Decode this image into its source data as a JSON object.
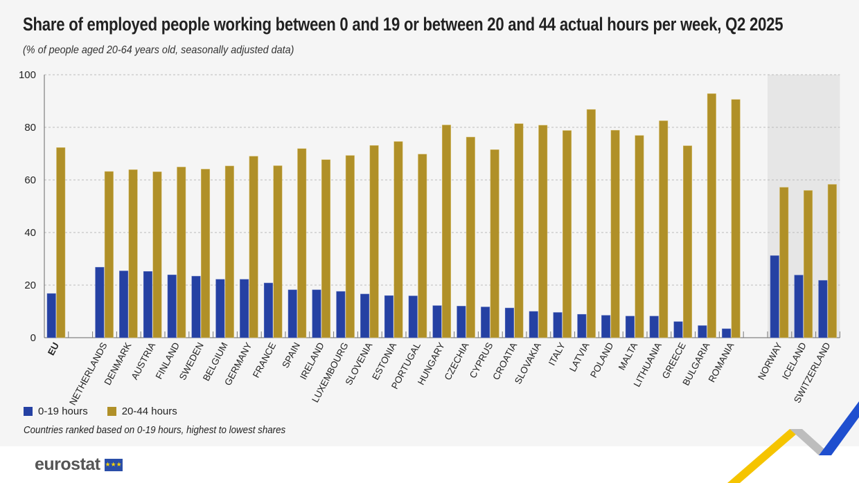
{
  "title": "Share of employed people working between 0 and 19 or between 20 and 44 actual hours per week, Q2 2025",
  "subtitle": "(% of people aged 20-64 years old, seasonally adjusted data)",
  "note": "Countries ranked based on 0-19 hours,  highest to lowest shares",
  "logo": "eurostat",
  "colors": {
    "series1": "#2541a3",
    "series2": "#b09028",
    "highlight_bg": "#e6e6e6"
  },
  "chart_data": {
    "type": "bar",
    "title": "Share of employed people working between 0 and 19 or between 20 and 44 actual hours per week, Q2 2025",
    "ylim": [
      0,
      100
    ],
    "yticks": [
      "0",
      "20",
      "40",
      "60",
      "80",
      "100"
    ],
    "grid": true,
    "legend_position": "bottom-left",
    "groups": [
      [
        "EU"
      ],
      [
        "NETHERLANDS",
        "DENMARK",
        "AUSTRIA",
        "FINLAND",
        "SWEDEN",
        "BELGIUM",
        "GERMANY",
        "FRANCE",
        "SPAIN",
        "IRELAND",
        "LUXEMBOURG",
        "SLOVENIA",
        "ESTONIA",
        "PORTUGAL",
        "HUNGARY",
        "CZECHIA",
        "CYPRUS",
        "CROATIA",
        "SLOVAKIA",
        "ITALY",
        "LATVIA",
        "POLAND",
        "MALTA",
        "LITHUANIA",
        "GREECE",
        "BULGARIA",
        "ROMANIA"
      ],
      [
        "NORWAY",
        "ICELAND",
        "SWITZERLAND"
      ]
    ],
    "categories": [
      "EU",
      "NETHERLANDS",
      "DENMARK",
      "AUSTRIA",
      "FINLAND",
      "SWEDEN",
      "BELGIUM",
      "GERMANY",
      "FRANCE",
      "SPAIN",
      "IRELAND",
      "LUXEMBOURG",
      "SLOVENIA",
      "ESTONIA",
      "PORTUGAL",
      "HUNGARY",
      "CZECHIA",
      "CYPRUS",
      "CROATIA",
      "SLOVAKIA",
      "ITALY",
      "LATVIA",
      "POLAND",
      "MALTA",
      "LITHUANIA",
      "GREECE",
      "BULGARIA",
      "ROMANIA",
      "NORWAY",
      "ICELAND",
      "SWITZERLAND"
    ],
    "series": [
      {
        "name": "0-19 hours",
        "values": [
          16.8,
          26.8,
          25.4,
          25.2,
          23.9,
          23.4,
          22.2,
          22.2,
          20.8,
          18.2,
          18.2,
          17.6,
          16.6,
          16.0,
          15.9,
          12.2,
          12.0,
          11.7,
          11.3,
          10.0,
          9.6,
          8.9,
          8.5,
          8.2,
          8.2,
          6.1,
          4.6,
          3.4,
          31.2,
          23.8,
          21.8
        ]
      },
      {
        "name": "20-44 hours",
        "values": [
          72.3,
          63.2,
          63.9,
          63.1,
          64.9,
          64.1,
          65.3,
          69.0,
          65.4,
          71.9,
          67.7,
          69.3,
          73.1,
          74.6,
          69.8,
          80.9,
          76.3,
          71.5,
          81.4,
          80.8,
          78.8,
          86.8,
          78.9,
          76.9,
          82.5,
          73.0,
          92.8,
          90.6,
          57.2,
          56.0,
          58.3
        ]
      }
    ]
  }
}
